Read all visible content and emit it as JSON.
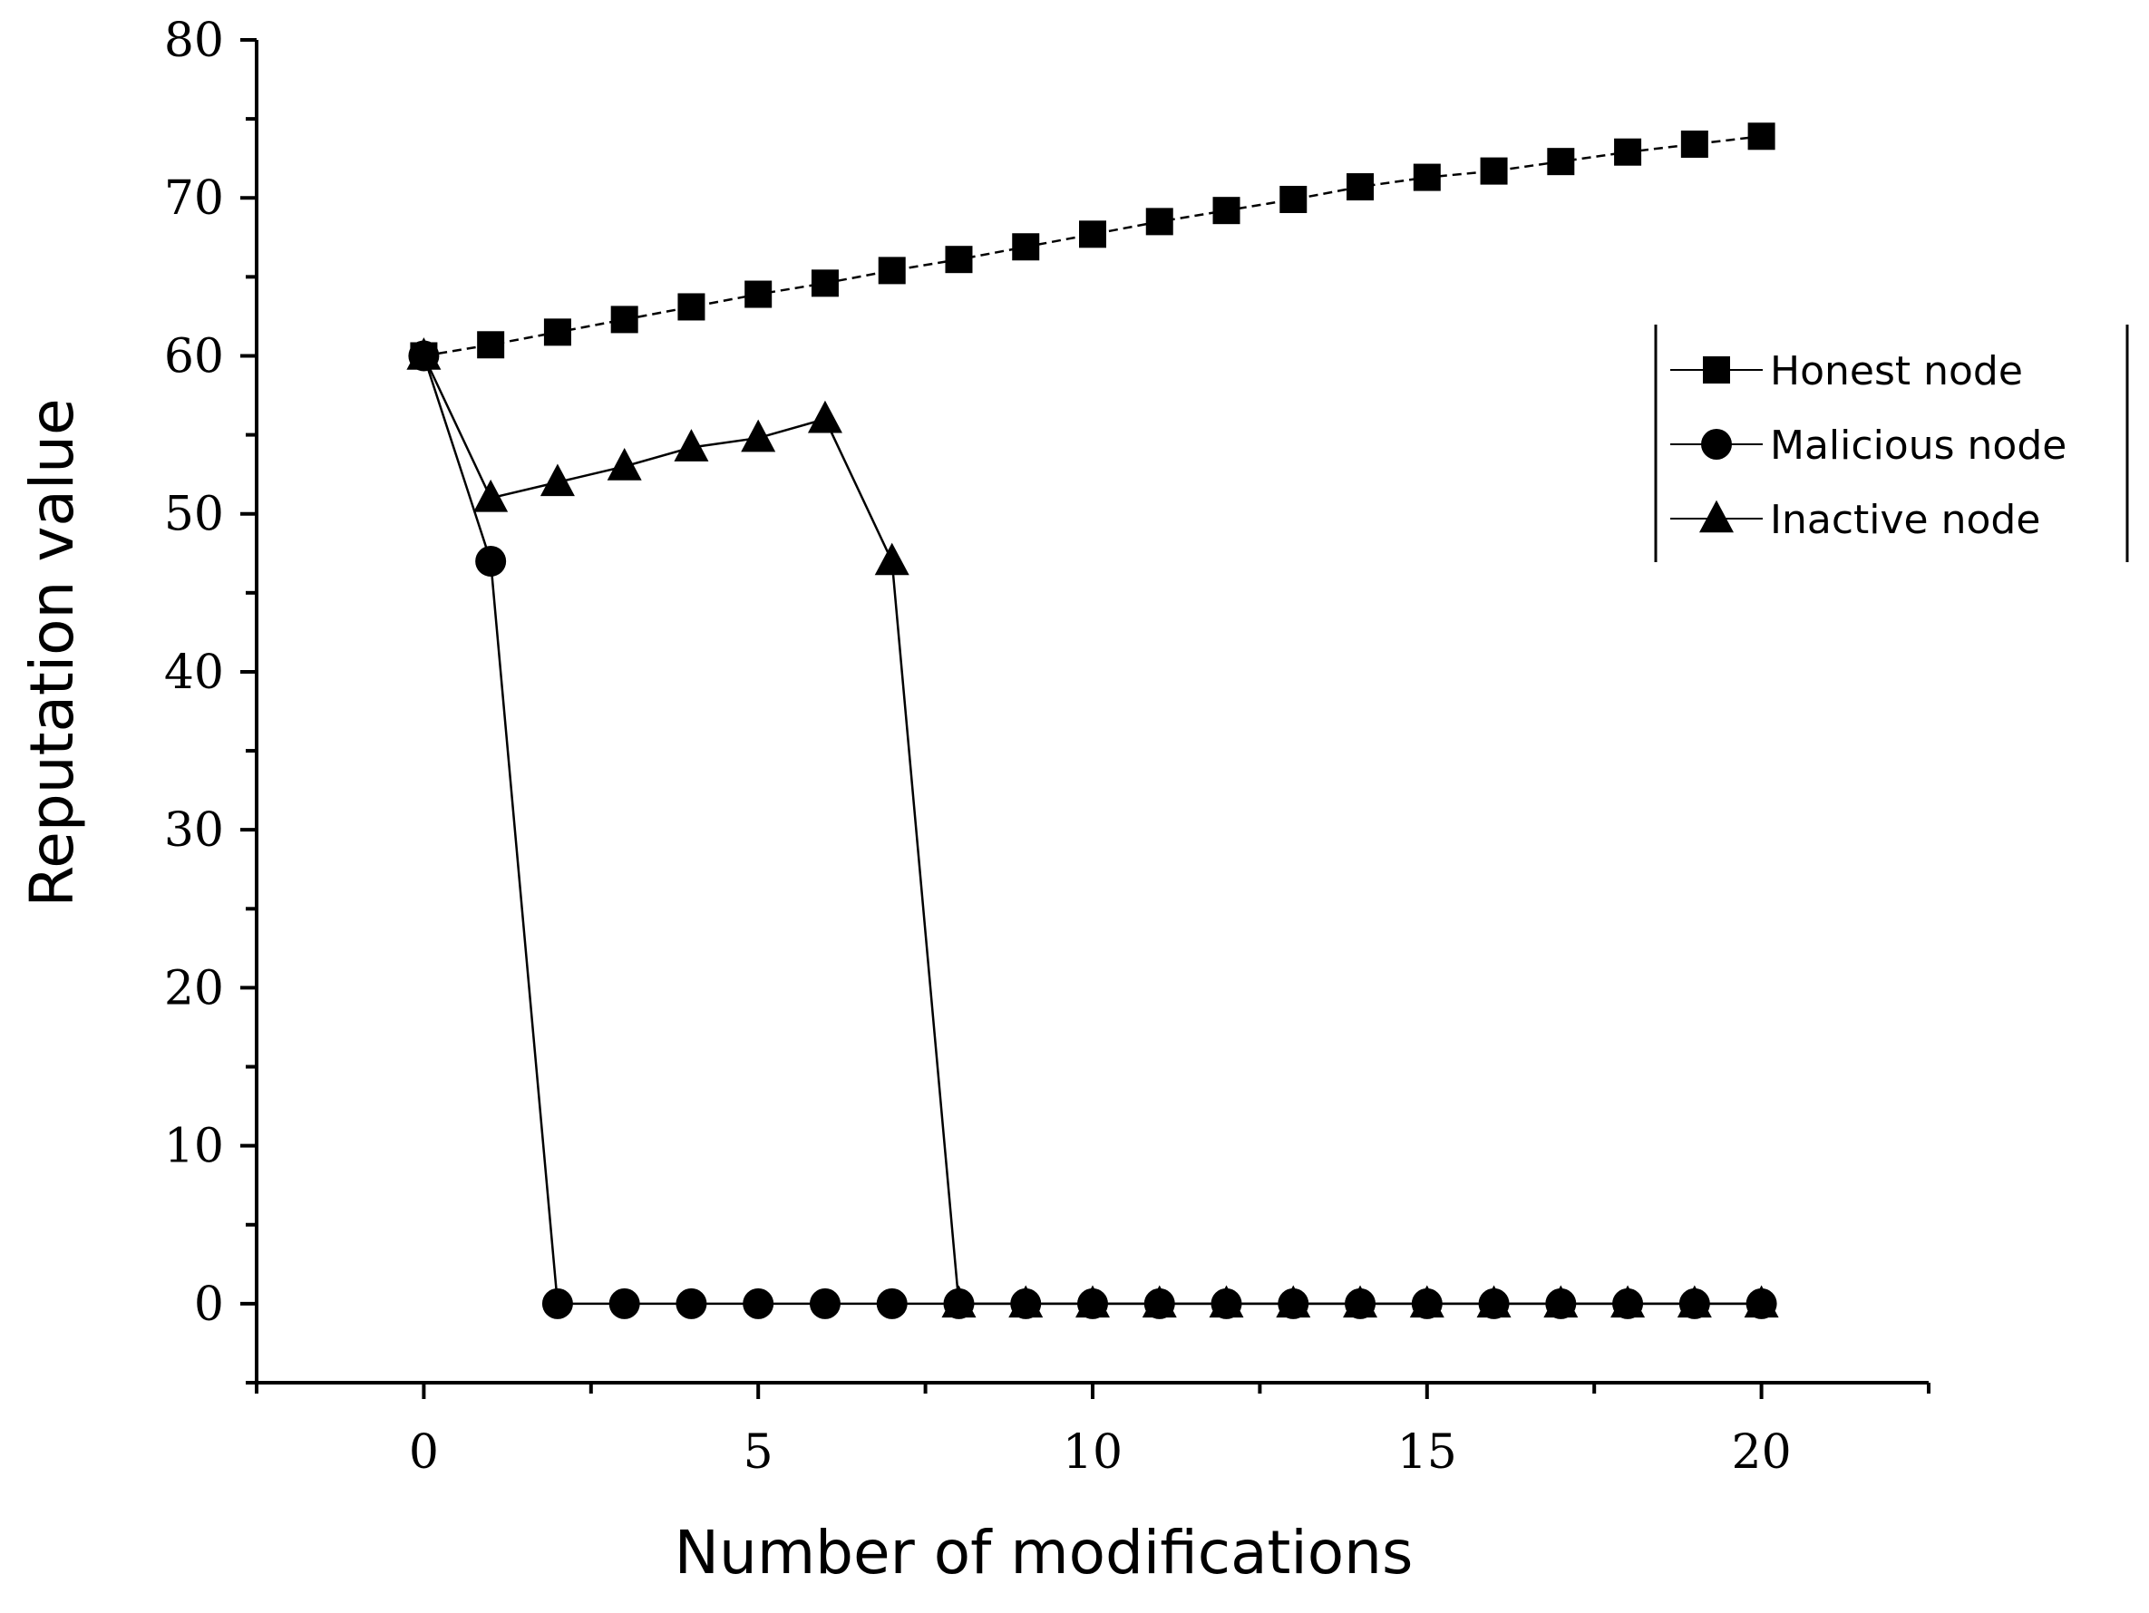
{
  "chart_data": {
    "type": "line",
    "title": "",
    "xlabel": "Number of modifications",
    "ylabel": "Reputation value",
    "xlim": [
      -2.5,
      22.5
    ],
    "ylim": [
      -5,
      80
    ],
    "x_ticks": [
      0,
      5,
      10,
      15,
      20
    ],
    "y_ticks": [
      0,
      10,
      20,
      30,
      40,
      50,
      60,
      70,
      80
    ],
    "grid": false,
    "legend_position": "top-right",
    "series": [
      {
        "name": "Honest node",
        "marker": "square",
        "dash": "dashed",
        "x": [
          0,
          1,
          2,
          3,
          4,
          5,
          6,
          7,
          8,
          9,
          10,
          11,
          12,
          13,
          14,
          15,
          16,
          17,
          18,
          19,
          20
        ],
        "y": [
          60,
          60.7,
          61.5,
          62.3,
          63.1,
          63.9,
          64.6,
          65.4,
          66.1,
          66.9,
          67.7,
          68.5,
          69.2,
          69.9,
          70.7,
          71.3,
          71.7,
          72.3,
          72.9,
          73.4,
          73.9
        ]
      },
      {
        "name": "Malicious node",
        "marker": "circle",
        "dash": "solid",
        "x": [
          0,
          1,
          2,
          3,
          4,
          5,
          6,
          7,
          8,
          9,
          10,
          11,
          12,
          13,
          14,
          15,
          16,
          17,
          18,
          19,
          20
        ],
        "y": [
          60,
          47,
          0,
          0,
          0,
          0,
          0,
          0,
          0,
          0,
          0,
          0,
          0,
          0,
          0,
          0,
          0,
          0,
          0,
          0,
          0
        ]
      },
      {
        "name": "Inactive node",
        "marker": "triangle",
        "dash": "solid",
        "x": [
          0,
          1,
          2,
          3,
          4,
          5,
          6,
          7,
          8,
          9,
          10,
          11,
          12,
          13,
          14,
          15,
          16,
          17,
          18,
          19,
          20
        ],
        "y": [
          60,
          51,
          52,
          53,
          54.2,
          54.8,
          56,
          47,
          0,
          0,
          0,
          0,
          0,
          0,
          0,
          0,
          0,
          0,
          0,
          0,
          0
        ]
      }
    ]
  }
}
